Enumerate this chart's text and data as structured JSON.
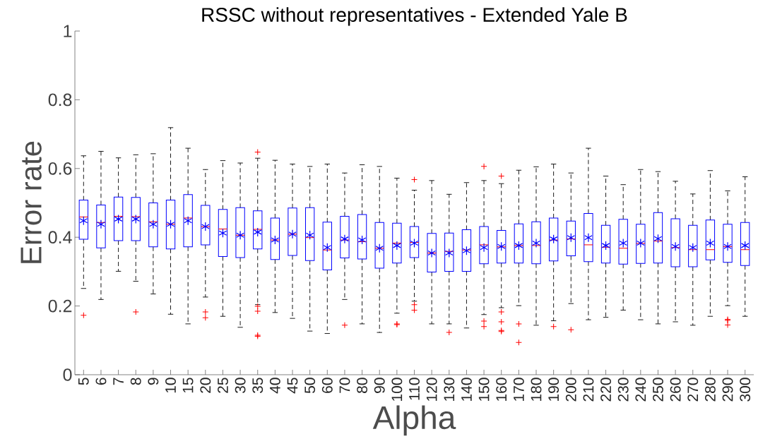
{
  "chart_data": {
    "type": "box",
    "title": "RSSC without representatives - Extended Yale B",
    "xlabel": "Alpha",
    "ylabel": "Error rate",
    "categories": [
      "5",
      "6",
      "7",
      "8",
      "9",
      "10",
      "15",
      "20",
      "25",
      "30",
      "35",
      "40",
      "45",
      "50",
      "60",
      "70",
      "80",
      "90",
      "100",
      "110",
      "120",
      "130",
      "140",
      "150",
      "160",
      "170",
      "180",
      "190",
      "200",
      "210",
      "220",
      "230",
      "240",
      "250",
      "260",
      "270",
      "280",
      "290",
      "300"
    ],
    "ylim": [
      0,
      1
    ],
    "yticks": [
      0,
      0.2,
      0.4,
      0.6,
      0.8,
      1
    ],
    "series": [
      {
        "color": "#0000ff",
        "boxes": [
          {
            "low": 0.251,
            "q1": 0.394,
            "median": 0.459,
            "q3": 0.508,
            "high": 0.637,
            "mean": 0.448,
            "outliers": [
              0.173
            ]
          },
          {
            "low": 0.219,
            "q1": 0.369,
            "median": 0.443,
            "q3": 0.494,
            "high": 0.65,
            "mean": 0.438
          },
          {
            "low": 0.301,
            "q1": 0.39,
            "median": 0.461,
            "q3": 0.517,
            "high": 0.631,
            "mean": 0.453
          },
          {
            "low": 0.272,
            "q1": 0.39,
            "median": 0.46,
            "q3": 0.516,
            "high": 0.64,
            "mean": 0.453,
            "outliers": [
              0.183
            ]
          },
          {
            "low": 0.235,
            "q1": 0.372,
            "median": 0.445,
            "q3": 0.5,
            "high": 0.643,
            "mean": 0.438
          },
          {
            "low": 0.176,
            "q1": 0.366,
            "median": 0.438,
            "q3": 0.508,
            "high": 0.719,
            "mean": 0.438
          },
          {
            "low": 0.148,
            "q1": 0.372,
            "median": 0.456,
            "q3": 0.524,
            "high": 0.659,
            "mean": 0.448
          },
          {
            "low": 0.226,
            "q1": 0.378,
            "median": 0.431,
            "q3": 0.493,
            "high": 0.597,
            "mean": 0.431,
            "outliers": [
              0.183,
              0.166
            ]
          },
          {
            "low": 0.17,
            "q1": 0.344,
            "median": 0.424,
            "q3": 0.481,
            "high": 0.623,
            "mean": 0.412
          },
          {
            "low": 0.138,
            "q1": 0.341,
            "median": 0.406,
            "q3": 0.486,
            "high": 0.616,
            "mean": 0.406
          },
          {
            "low": 0.204,
            "q1": 0.366,
            "median": 0.423,
            "q3": 0.477,
            "high": 0.63,
            "mean": 0.415,
            "outliers": [
              0.648,
              0.199,
              0.185,
              0.115,
              0.112
            ]
          },
          {
            "low": 0.181,
            "q1": 0.335,
            "median": 0.392,
            "q3": 0.456,
            "high": 0.624,
            "mean": 0.392
          },
          {
            "low": 0.164,
            "q1": 0.347,
            "median": 0.409,
            "q3": 0.485,
            "high": 0.613,
            "mean": 0.409
          },
          {
            "low": 0.127,
            "q1": 0.332,
            "median": 0.399,
            "q3": 0.486,
            "high": 0.606,
            "mean": 0.406
          },
          {
            "low": 0.12,
            "q1": 0.305,
            "median": 0.363,
            "q3": 0.444,
            "high": 0.613,
            "mean": 0.37
          },
          {
            "low": 0.219,
            "q1": 0.34,
            "median": 0.392,
            "q3": 0.461,
            "high": 0.587,
            "mean": 0.395,
            "outliers": [
              0.144
            ]
          },
          {
            "low": 0.148,
            "q1": 0.337,
            "median": 0.387,
            "q3": 0.466,
            "high": 0.611,
            "mean": 0.392
          },
          {
            "low": 0.123,
            "q1": 0.31,
            "median": 0.368,
            "q3": 0.443,
            "high": 0.606,
            "mean": 0.368
          },
          {
            "low": 0.179,
            "q1": 0.325,
            "median": 0.383,
            "q3": 0.441,
            "high": 0.572,
            "mean": 0.376,
            "outliers": [
              0.148,
              0.146
            ]
          },
          {
            "low": 0.214,
            "q1": 0.341,
            "median": 0.385,
            "q3": 0.431,
            "high": 0.537,
            "mean": 0.383,
            "outliers": [
              0.568,
              0.204,
              0.188
            ]
          },
          {
            "low": 0.148,
            "q1": 0.299,
            "median": 0.354,
            "q3": 0.411,
            "high": 0.565,
            "mean": 0.354
          },
          {
            "low": 0.148,
            "q1": 0.301,
            "median": 0.359,
            "q3": 0.412,
            "high": 0.525,
            "mean": 0.354,
            "outliers": [
              0.123
            ]
          },
          {
            "low": 0.136,
            "q1": 0.301,
            "median": 0.363,
            "q3": 0.422,
            "high": 0.559,
            "mean": 0.361
          },
          {
            "low": 0.175,
            "q1": 0.323,
            "median": 0.378,
            "q3": 0.431,
            "high": 0.565,
            "mean": 0.37,
            "outliers": [
              0.606,
              0.156,
              0.14
            ]
          },
          {
            "low": 0.195,
            "q1": 0.325,
            "median": 0.372,
            "q3": 0.42,
            "high": 0.556,
            "mean": 0.373,
            "outliers": [
              0.578,
              0.183,
              0.154,
              0.129,
              0.126
            ]
          },
          {
            "low": 0.201,
            "q1": 0.325,
            "median": 0.376,
            "q3": 0.439,
            "high": 0.595,
            "mean": 0.376,
            "outliers": [
              0.148,
              0.094
            ]
          },
          {
            "low": 0.144,
            "q1": 0.323,
            "median": 0.376,
            "q3": 0.445,
            "high": 0.605,
            "mean": 0.383
          },
          {
            "low": 0.157,
            "q1": 0.331,
            "median": 0.392,
            "q3": 0.456,
            "high": 0.613,
            "mean": 0.395,
            "outliers": [
              0.14
            ]
          },
          {
            "low": 0.207,
            "q1": 0.346,
            "median": 0.395,
            "q3": 0.447,
            "high": 0.587,
            "mean": 0.399,
            "outliers": [
              0.131
            ]
          },
          {
            "low": 0.16,
            "q1": 0.329,
            "median": 0.378,
            "q3": 0.469,
            "high": 0.659,
            "mean": 0.399
          },
          {
            "low": 0.167,
            "q1": 0.325,
            "median": 0.371,
            "q3": 0.435,
            "high": 0.578,
            "mean": 0.376
          },
          {
            "low": 0.188,
            "q1": 0.322,
            "median": 0.368,
            "q3": 0.452,
            "high": 0.553,
            "mean": 0.383
          },
          {
            "low": 0.16,
            "q1": 0.324,
            "median": 0.382,
            "q3": 0.438,
            "high": 0.597,
            "mean": 0.383
          },
          {
            "low": 0.148,
            "q1": 0.325,
            "median": 0.389,
            "q3": 0.472,
            "high": 0.591,
            "mean": 0.396
          },
          {
            "low": 0.154,
            "q1": 0.314,
            "median": 0.37,
            "q3": 0.454,
            "high": 0.563,
            "mean": 0.373
          },
          {
            "low": 0.144,
            "q1": 0.314,
            "median": 0.364,
            "q3": 0.435,
            "high": 0.526,
            "mean": 0.37
          },
          {
            "low": 0.17,
            "q1": 0.334,
            "median": 0.364,
            "q3": 0.45,
            "high": 0.594,
            "mean": 0.383
          },
          {
            "low": 0.201,
            "q1": 0.327,
            "median": 0.373,
            "q3": 0.438,
            "high": 0.535,
            "mean": 0.373,
            "outliers": [
              0.161,
              0.158,
              0.145
            ]
          },
          {
            "low": 0.17,
            "q1": 0.318,
            "median": 0.364,
            "q3": 0.443,
            "high": 0.576,
            "mean": 0.376
          }
        ]
      }
    ]
  }
}
